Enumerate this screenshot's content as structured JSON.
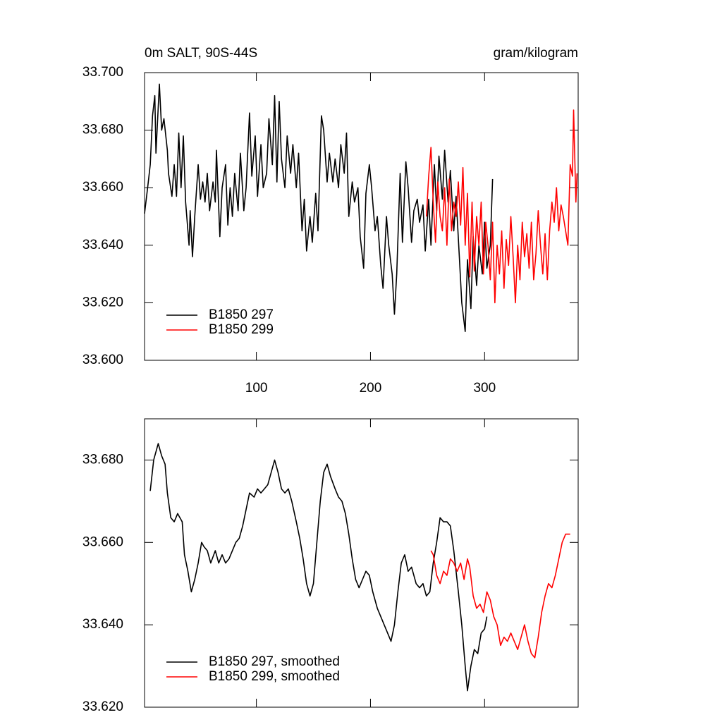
{
  "chart_data": [
    {
      "type": "line",
      "title": "0m SALT, 90S-44S",
      "units": "gram/kilogram",
      "xlim": [
        2,
        382
      ],
      "xticks": [
        100,
        200,
        300
      ],
      "ylim": [
        33.6,
        33.7
      ],
      "yticks": [
        {
          "value": 33.6,
          "label": "33.600"
        },
        {
          "value": 33.62,
          "label": "33.620"
        },
        {
          "value": 33.64,
          "label": "33.640"
        },
        {
          "value": 33.66,
          "label": "33.660"
        },
        {
          "value": 33.68,
          "label": "33.680"
        },
        {
          "value": 33.7,
          "label": "33.700"
        }
      ],
      "legend": "lower left",
      "series": [
        {
          "name": "B1850 297",
          "color": "#000000",
          "x": [
            2,
            5,
            7,
            9,
            11,
            12,
            15,
            17,
            19,
            22,
            23,
            26,
            28,
            30,
            32,
            34,
            36,
            38,
            41,
            42,
            44,
            46,
            49,
            51,
            53,
            55,
            57,
            59,
            62,
            64,
            65,
            68,
            70,
            73,
            75,
            77,
            79,
            81,
            84,
            86,
            89,
            91,
            94,
            96,
            99,
            101,
            104,
            106,
            109,
            111,
            114,
            116,
            118,
            120,
            122,
            125,
            127,
            130,
            132,
            135,
            137,
            140,
            142,
            144,
            147,
            149,
            152,
            154,
            157,
            159,
            162,
            164,
            167,
            169,
            172,
            174,
            177,
            179,
            181,
            184,
            186,
            189,
            191,
            194,
            196,
            199,
            201,
            204,
            206,
            209,
            211,
            214,
            216,
            219,
            221,
            223,
            226,
            228,
            231,
            233,
            236,
            238,
            241,
            243,
            246,
            248,
            251,
            253,
            256,
            258,
            260,
            263,
            265,
            268,
            270,
            273,
            275,
            278,
            280,
            283,
            285,
            288,
            290,
            293,
            295,
            298,
            300,
            302,
            305,
            307
          ],
          "values": [
            33.651,
            33.661,
            33.668,
            33.685,
            33.692,
            33.672,
            33.696,
            33.68,
            33.684,
            33.673,
            33.665,
            33.657,
            33.668,
            33.657,
            33.679,
            33.66,
            33.678,
            33.655,
            33.64,
            33.652,
            33.636,
            33.65,
            33.668,
            33.656,
            33.662,
            33.655,
            33.665,
            33.652,
            33.662,
            33.655,
            33.673,
            33.643,
            33.66,
            33.668,
            33.647,
            33.66,
            33.65,
            33.665,
            33.652,
            33.672,
            33.652,
            33.66,
            33.686,
            33.664,
            33.678,
            33.657,
            33.675,
            33.66,
            33.665,
            33.684,
            33.668,
            33.692,
            33.662,
            33.69,
            33.67,
            33.66,
            33.678,
            33.665,
            33.675,
            33.66,
            33.672,
            33.645,
            33.656,
            33.638,
            33.65,
            33.641,
            33.658,
            33.645,
            33.685,
            33.68,
            33.662,
            33.672,
            33.662,
            33.67,
            33.66,
            33.675,
            33.665,
            33.679,
            33.65,
            33.662,
            33.655,
            33.66,
            33.643,
            33.632,
            33.658,
            33.668,
            33.66,
            33.645,
            33.65,
            33.633,
            33.625,
            33.65,
            33.64,
            33.63,
            33.616,
            33.63,
            33.665,
            33.641,
            33.669,
            33.66,
            33.641,
            33.652,
            33.656,
            33.648,
            33.654,
            33.638,
            33.656,
            33.64,
            33.668,
            33.652,
            33.671,
            33.656,
            33.673,
            33.655,
            33.666,
            33.645,
            33.657,
            33.635,
            33.62,
            33.61,
            33.635,
            33.618,
            33.643,
            33.626,
            33.64,
            33.63,
            33.648,
            33.632,
            33.64,
            33.663
          ]
        },
        {
          "name": "B1850 299",
          "color": "#ff0000",
          "x": [
            249,
            251,
            253,
            255,
            257,
            259,
            261,
            263,
            265,
            267,
            269,
            271,
            273,
            275,
            277,
            279,
            281,
            283,
            285,
            287,
            289,
            291,
            293,
            295,
            297,
            299,
            301,
            303,
            305,
            307,
            309,
            311,
            313,
            315,
            317,
            319,
            321,
            323,
            325,
            327,
            329,
            331,
            333,
            335,
            337,
            339,
            341,
            343,
            345,
            347,
            349,
            351,
            353,
            355,
            357,
            359,
            361,
            363,
            365,
            367,
            369,
            371,
            373,
            375,
            377,
            378,
            380,
            381
          ],
          "values": [
            33.65,
            33.664,
            33.674,
            33.655,
            33.641,
            33.662,
            33.65,
            33.645,
            33.66,
            33.64,
            33.663,
            33.645,
            33.655,
            33.65,
            33.662,
            33.647,
            33.667,
            33.64,
            33.658,
            33.629,
            33.655,
            33.631,
            33.65,
            33.64,
            33.655,
            33.63,
            33.648,
            33.64,
            33.628,
            33.648,
            33.62,
            33.64,
            33.63,
            33.645,
            33.625,
            33.642,
            33.633,
            33.65,
            33.636,
            33.62,
            33.64,
            33.628,
            33.648,
            33.636,
            33.644,
            33.632,
            33.648,
            33.628,
            33.637,
            33.652,
            33.64,
            33.63,
            33.644,
            33.628,
            33.645,
            33.655,
            33.648,
            33.66,
            33.645,
            33.654,
            33.65,
            33.645,
            33.64,
            33.668,
            33.664,
            33.687,
            33.655,
            33.665
          ]
        }
      ]
    },
    {
      "type": "line",
      "xlim": [
        2,
        382
      ],
      "xticks": [
        100,
        200,
        300
      ],
      "ylim": [
        33.62,
        33.69
      ],
      "yticks": [
        {
          "value": 33.62,
          "label": "33.620"
        },
        {
          "value": 33.64,
          "label": "33.640"
        },
        {
          "value": 33.66,
          "label": "33.660"
        },
        {
          "value": 33.68,
          "label": "33.680"
        }
      ],
      "legend": "lower left",
      "series": [
        {
          "name": "B1850 297, smoothed",
          "color": "#000000",
          "x": [
            7,
            10,
            14,
            17,
            20,
            22,
            25,
            28,
            31,
            35,
            37,
            40,
            43,
            46,
            49,
            52,
            54,
            57,
            60,
            64,
            67,
            70,
            73,
            76,
            79,
            82,
            85,
            88,
            91,
            94,
            98,
            101,
            104,
            107,
            110,
            113,
            116,
            119,
            122,
            125,
            128,
            131,
            135,
            138,
            141,
            144,
            147,
            150,
            153,
            156,
            159,
            162,
            165,
            169,
            172,
            175,
            178,
            181,
            184,
            187,
            190,
            193,
            196,
            199,
            202,
            206,
            209,
            212,
            215,
            218,
            221,
            224,
            227,
            230,
            233,
            236,
            240,
            243,
            246,
            249,
            252,
            255,
            258,
            261,
            264,
            267,
            270,
            273,
            277,
            280,
            283,
            285,
            288,
            291,
            294,
            297,
            300,
            302
          ],
          "values": [
            33.6725,
            33.68,
            33.684,
            33.681,
            33.679,
            33.672,
            33.666,
            33.665,
            33.667,
            33.665,
            33.657,
            33.653,
            33.648,
            33.651,
            33.655,
            33.66,
            33.659,
            33.658,
            33.655,
            33.658,
            33.655,
            33.657,
            33.655,
            33.656,
            33.658,
            33.66,
            33.661,
            33.664,
            33.668,
            33.672,
            33.671,
            33.673,
            33.672,
            33.673,
            33.674,
            33.677,
            33.68,
            33.677,
            33.673,
            33.672,
            33.673,
            33.67,
            33.665,
            33.661,
            33.656,
            33.65,
            33.647,
            33.65,
            33.66,
            33.67,
            33.677,
            33.679,
            33.676,
            33.673,
            33.671,
            33.67,
            33.667,
            33.662,
            33.656,
            33.651,
            33.649,
            33.651,
            33.653,
            33.652,
            33.648,
            33.644,
            33.642,
            33.64,
            33.638,
            33.636,
            33.64,
            33.648,
            33.655,
            33.657,
            33.653,
            33.654,
            33.65,
            33.649,
            33.65,
            33.647,
            33.648,
            33.655,
            33.66,
            33.666,
            33.665,
            33.665,
            33.664,
            33.658,
            33.648,
            33.64,
            33.63,
            33.624,
            33.63,
            33.634,
            33.633,
            33.638,
            33.639,
            33.642
          ]
        },
        {
          "name": "B1850 299, smoothed",
          "color": "#ff0000",
          "x": [
            253,
            255,
            258,
            261,
            264,
            267,
            270,
            273,
            276,
            279,
            282,
            285,
            287,
            290,
            293,
            296,
            299,
            302,
            305,
            308,
            311,
            314,
            317,
            320,
            323,
            326,
            329,
            332,
            335,
            338,
            341,
            344,
            347,
            350,
            353,
            356,
            359,
            362,
            365,
            368,
            371,
            375
          ],
          "values": [
            33.658,
            33.657,
            33.652,
            33.65,
            33.653,
            33.652,
            33.656,
            33.655,
            33.653,
            33.655,
            33.651,
            33.656,
            33.654,
            33.647,
            33.644,
            33.645,
            33.643,
            33.648,
            33.646,
            33.642,
            33.64,
            33.635,
            33.637,
            33.636,
            33.638,
            33.636,
            33.634,
            33.637,
            33.64,
            33.636,
            33.633,
            33.632,
            33.637,
            33.643,
            33.647,
            33.65,
            33.649,
            33.652,
            33.656,
            33.66,
            33.662,
            33.662
          ]
        }
      ]
    }
  ]
}
